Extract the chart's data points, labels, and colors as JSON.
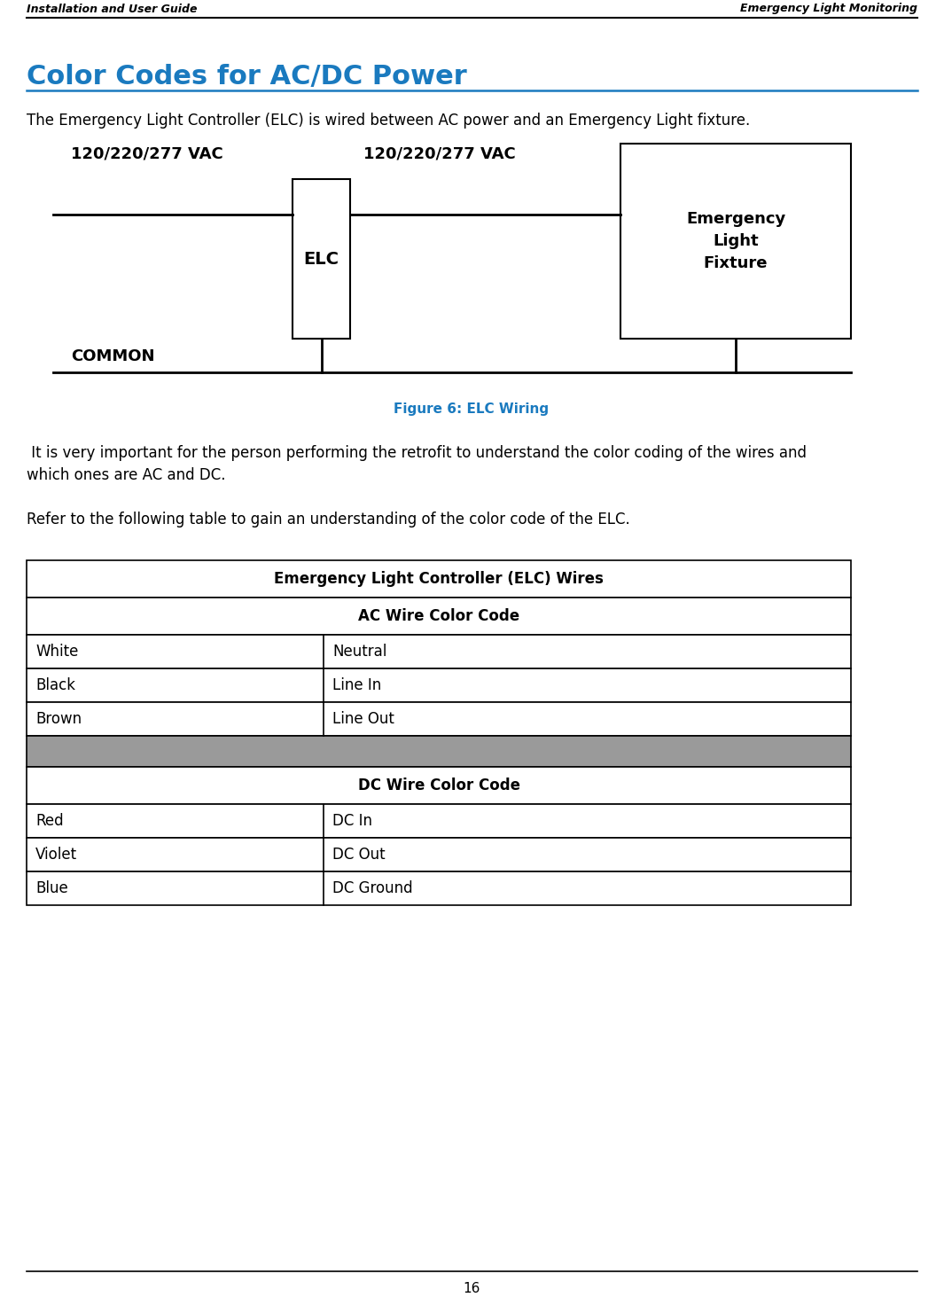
{
  "header_left": "Installation and User Guide",
  "header_right": "Emergency Light Monitoring",
  "page_number": "16",
  "title": "Color Codes for AC/DC Power",
  "title_color": "#1a7abf",
  "intro_text": "The Emergency Light Controller (ELC) is wired between AC power and an Emergency Light fixture.",
  "figure_caption": "Figure 6: ELC Wiring",
  "figure_caption_color": "#1a7abf",
  "para1_line1": " It is very important for the person performing the retrofit to understand the color coding of the wires and",
  "para1_line2": "which ones are AC and DC.",
  "para2": "Refer to the following table to gain an understanding of the color code of the ELC.",
  "table_title": "Emergency Light Controller (ELC) Wires",
  "ac_header": "AC Wire Color Code",
  "dc_header": "DC Wire Color Code",
  "ac_rows": [
    [
      "White",
      "Neutral"
    ],
    [
      "Black",
      "Line In"
    ],
    [
      "Brown",
      "Line Out"
    ]
  ],
  "dc_rows": [
    [
      "Red",
      "DC In"
    ],
    [
      "Violet",
      "DC Out"
    ],
    [
      "Blue",
      "DC Ground"
    ]
  ],
  "separator_row_color": "#9a9a9a",
  "border_color": "#000000",
  "bg_color": "#ffffff",
  "diag_vac_left": "120/220/277 VAC",
  "diag_vac_right": "120/220/277 VAC",
  "diag_elc": "ELC",
  "diag_elf": "Emergency\nLight\nFixture",
  "diag_common": "COMMON"
}
